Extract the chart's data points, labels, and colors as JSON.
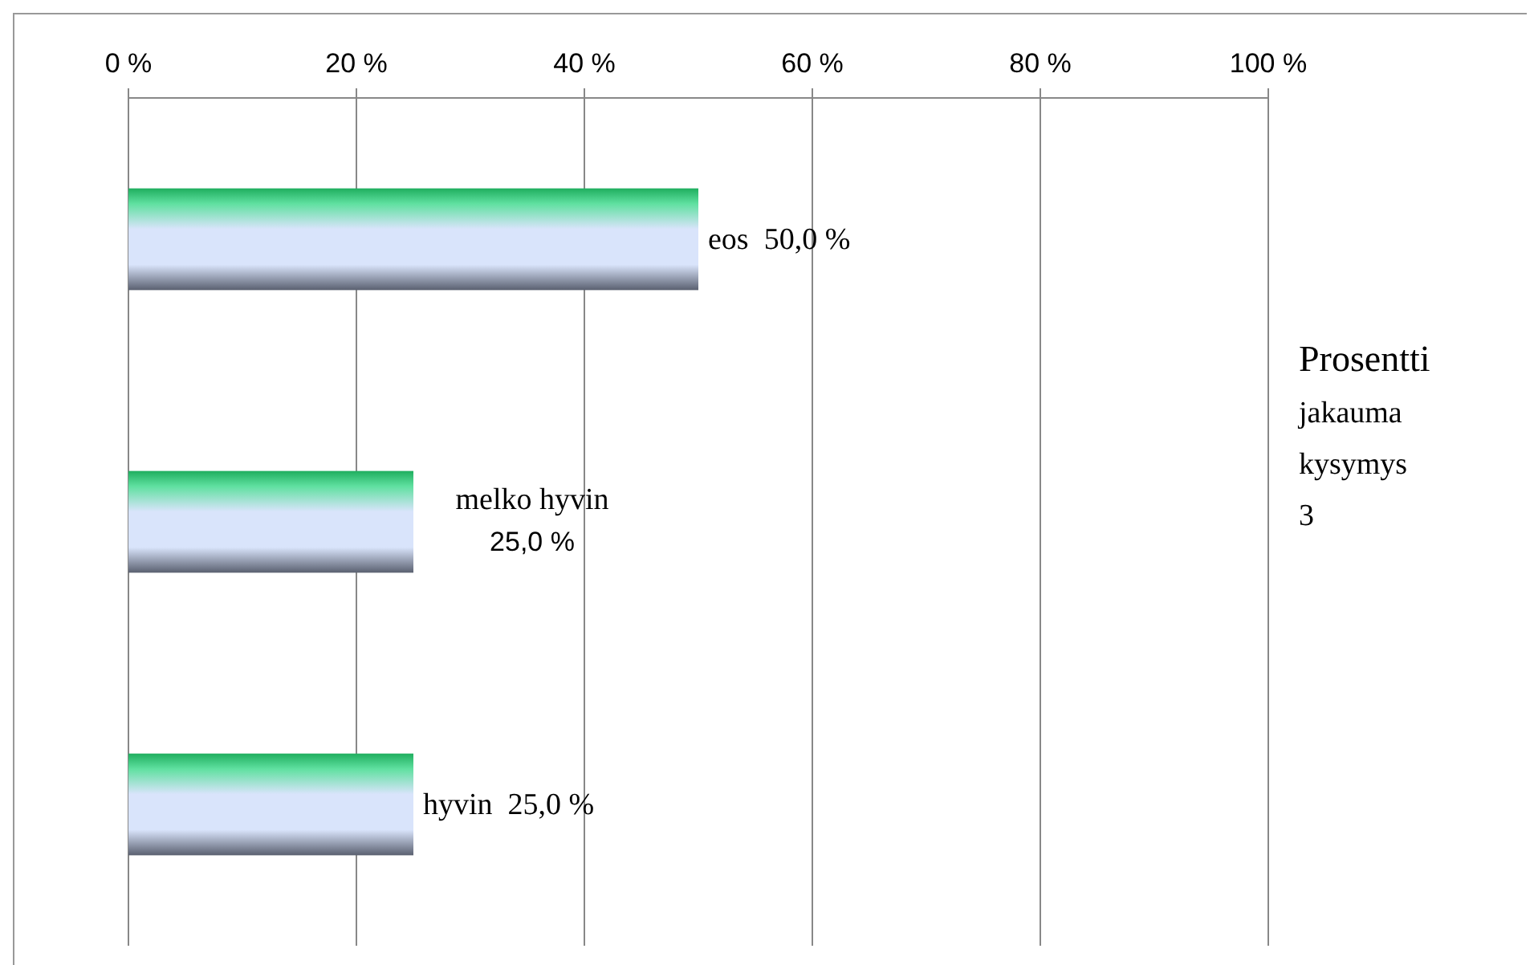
{
  "chart_data": {
    "type": "bar",
    "orientation": "horizontal",
    "categories": [
      "eos",
      "melko hyvin",
      "hyvin"
    ],
    "values": [
      50,
      25,
      25
    ],
    "value_labels": [
      "50,0 %",
      "25,0 %",
      "25,0 %"
    ],
    "color": "#d9e4fb",
    "xlim": [
      0,
      100
    ],
    "xticks": [
      {
        "value": 0,
        "label": "0 %"
      },
      {
        "value": 20,
        "label": "20 %"
      },
      {
        "value": 40,
        "label": "40 %"
      },
      {
        "value": 60,
        "label": "60 %"
      },
      {
        "value": 80,
        "label": "80 %"
      },
      {
        "value": 100,
        "label": "100 %"
      }
    ],
    "grid": "x",
    "tick_labels": "x",
    "annotations": [
      "Prosentti jakauma kysymys 3"
    ]
  }
}
